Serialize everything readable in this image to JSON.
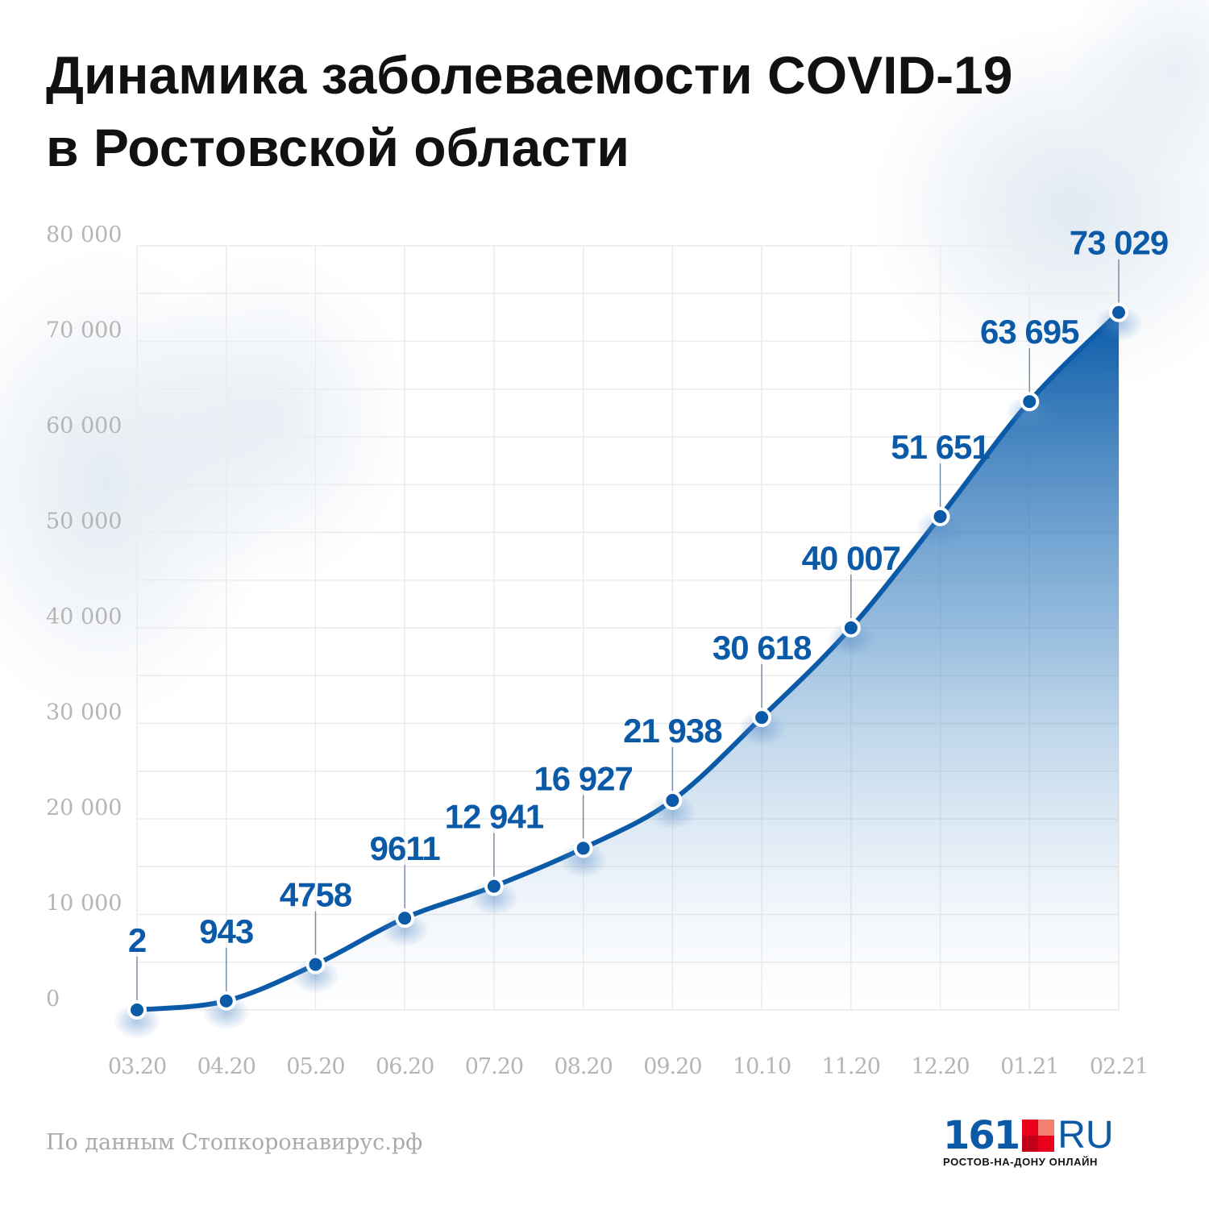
{
  "title_line1": "Динамика заболеваемости COVID-19",
  "title_line2": "в Ростовской области",
  "source": "По данным Стопкоронавирус.рф",
  "logo": {
    "number": "161",
    "suffix": "RU",
    "subtitle": "РОСТОВ-НА-ДОНУ ОНЛАЙН"
  },
  "colors": {
    "line": "#0a5aa8",
    "label": "#0a5aa8",
    "axis_text": "#b5b5b5",
    "grid": "#ececec"
  },
  "chart_data": {
    "type": "area",
    "title": "Динамика заболеваемости COVID-19 в Ростовской области",
    "categories": [
      "03.20",
      "04.20",
      "05.20",
      "06.20",
      "07.20",
      "08.20",
      "09.20",
      "10.10",
      "11.20",
      "12.20",
      "01.21",
      "02.21"
    ],
    "values": [
      2,
      943,
      4758,
      9611,
      12941,
      16927,
      21938,
      30618,
      40007,
      51651,
      63695,
      73029
    ],
    "value_labels": [
      "2",
      "943",
      "4758",
      "9611",
      "12 941",
      "16 927",
      "21 938",
      "30 618",
      "40 007",
      "51 651",
      "63 695",
      "73 029"
    ],
    "ylim": [
      0,
      80000
    ],
    "yticks": [
      0,
      10000,
      20000,
      30000,
      40000,
      50000,
      60000,
      70000,
      80000
    ],
    "ytick_labels": [
      "0",
      "10 000",
      "20 000",
      "30 000",
      "40 000",
      "50 000",
      "60 000",
      "70 000",
      "80 000"
    ],
    "grid": true,
    "xlabel": "",
    "ylabel": ""
  }
}
